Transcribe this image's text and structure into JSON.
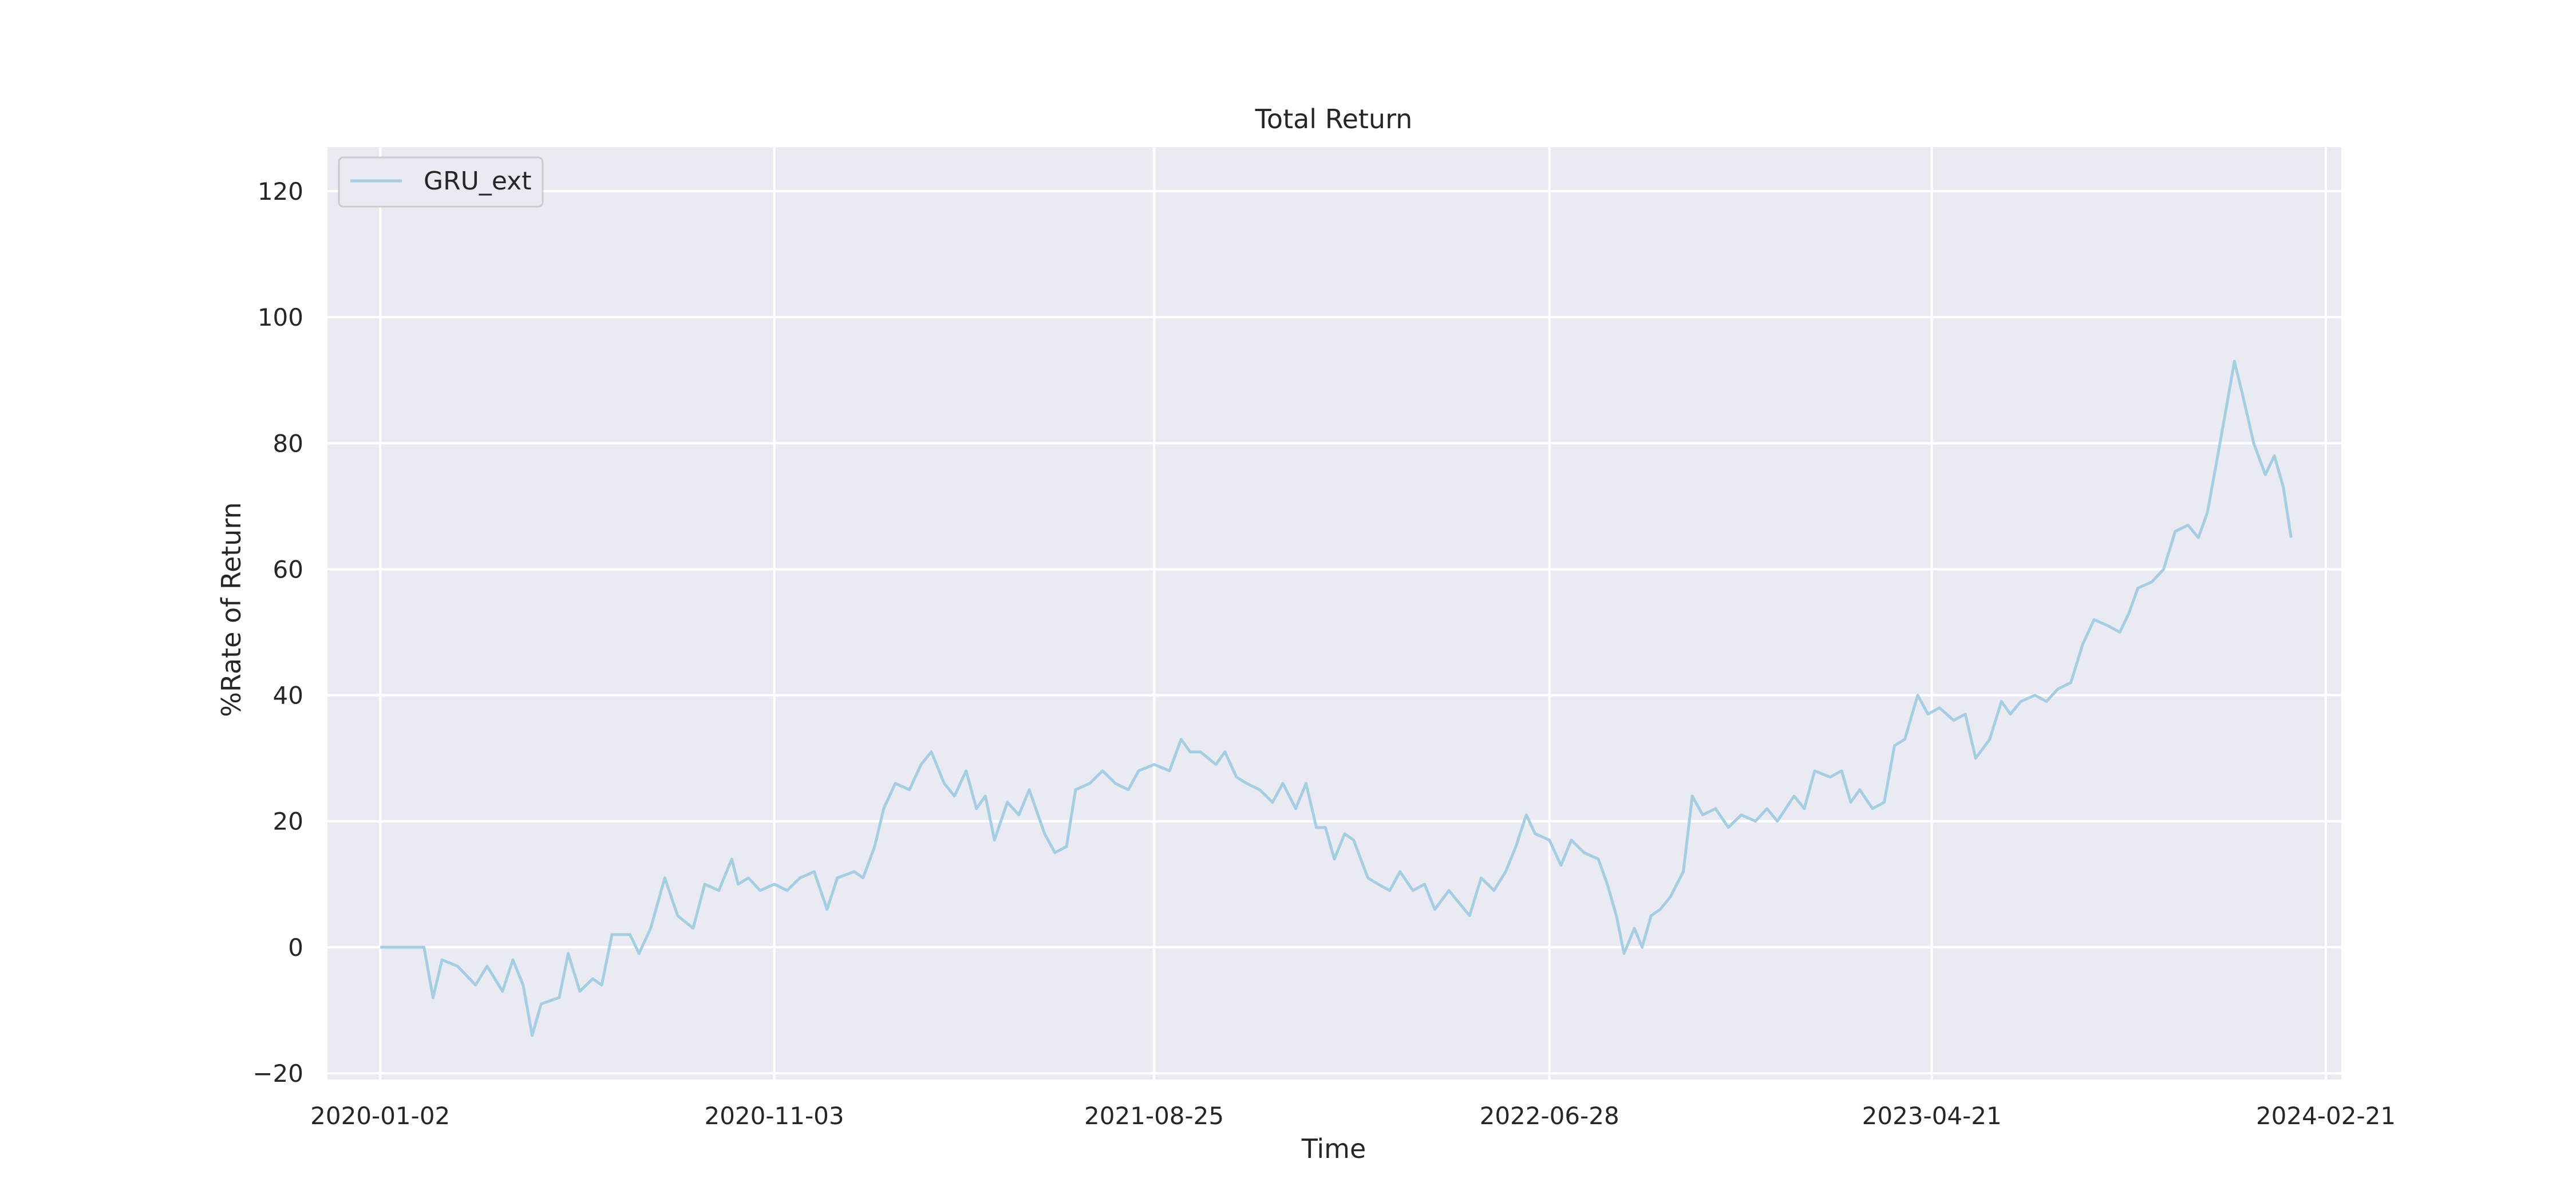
{
  "colors": {
    "plot_background": "#eaeaf2",
    "grid": "#ffffff",
    "series_line": "#a6cee3",
    "text": "#262626"
  },
  "chart_data": {
    "type": "line",
    "title": "Total Return",
    "xlabel": "Time",
    "ylabel": "%Rate of Return",
    "x_tick_labels": [
      "2020-01-02",
      "2020-11-03",
      "2021-08-25",
      "2022-06-28",
      "2023-04-21",
      "2024-02-21"
    ],
    "y_ticks": [
      -20,
      0,
      20,
      40,
      60,
      80,
      100,
      120
    ],
    "xlim": [
      "2019-11-22",
      "2024-03-04"
    ],
    "ylim": [
      -21,
      127
    ],
    "grid": true,
    "legend_position": "top-left",
    "series": [
      {
        "name": "GRU_ext",
        "points": [
          [
            "2020-01-02",
            0
          ],
          [
            "2020-02-05",
            0
          ],
          [
            "2020-02-12",
            -8
          ],
          [
            "2020-02-19",
            -2
          ],
          [
            "2020-03-02",
            -3
          ],
          [
            "2020-03-16",
            -6
          ],
          [
            "2020-03-25",
            -3
          ],
          [
            "2020-04-06",
            -7
          ],
          [
            "2020-04-14",
            -2
          ],
          [
            "2020-04-22",
            -6
          ],
          [
            "2020-04-29",
            -14
          ],
          [
            "2020-05-06",
            -9
          ],
          [
            "2020-05-20",
            -8
          ],
          [
            "2020-05-27",
            -1
          ],
          [
            "2020-06-05",
            -7
          ],
          [
            "2020-06-15",
            -5
          ],
          [
            "2020-06-22",
            -6
          ],
          [
            "2020-06-30",
            2
          ],
          [
            "2020-07-14",
            2
          ],
          [
            "2020-07-21",
            -1
          ],
          [
            "2020-07-30",
            3
          ],
          [
            "2020-08-10",
            11
          ],
          [
            "2020-08-20",
            5
          ],
          [
            "2020-09-01",
            3
          ],
          [
            "2020-09-10",
            10
          ],
          [
            "2020-09-21",
            9
          ],
          [
            "2020-10-01",
            14
          ],
          [
            "2020-10-06",
            10
          ],
          [
            "2020-10-14",
            11
          ],
          [
            "2020-10-23",
            9
          ],
          [
            "2020-11-03",
            10
          ],
          [
            "2020-11-13",
            9
          ],
          [
            "2020-11-23",
            11
          ],
          [
            "2020-12-04",
            12
          ],
          [
            "2020-12-14",
            6
          ],
          [
            "2020-12-22",
            11
          ],
          [
            "2021-01-04",
            12
          ],
          [
            "2021-01-11",
            11
          ],
          [
            "2021-01-20",
            16
          ],
          [
            "2021-01-27",
            22
          ],
          [
            "2021-02-05",
            26
          ],
          [
            "2021-02-16",
            25
          ],
          [
            "2021-02-25",
            29
          ],
          [
            "2021-03-05",
            31
          ],
          [
            "2021-03-15",
            26
          ],
          [
            "2021-03-23",
            24
          ],
          [
            "2021-04-01",
            28
          ],
          [
            "2021-04-09",
            22
          ],
          [
            "2021-04-16",
            24
          ],
          [
            "2021-04-23",
            17
          ],
          [
            "2021-05-03",
            23
          ],
          [
            "2021-05-12",
            21
          ],
          [
            "2021-05-20",
            25
          ],
          [
            "2021-06-01",
            18
          ],
          [
            "2021-06-09",
            15
          ],
          [
            "2021-06-18",
            16
          ],
          [
            "2021-06-25",
            25
          ],
          [
            "2021-07-06",
            26
          ],
          [
            "2021-07-16",
            28
          ],
          [
            "2021-07-26",
            26
          ],
          [
            "2021-08-05",
            25
          ],
          [
            "2021-08-13",
            28
          ],
          [
            "2021-08-25",
            29
          ],
          [
            "2021-09-06",
            28
          ],
          [
            "2021-09-15",
            33
          ],
          [
            "2021-09-22",
            31
          ],
          [
            "2021-09-30",
            31
          ],
          [
            "2021-10-12",
            29
          ],
          [
            "2021-10-19",
            31
          ],
          [
            "2021-10-28",
            27
          ],
          [
            "2021-11-05",
            26
          ],
          [
            "2021-11-15",
            25
          ],
          [
            "2021-11-25",
            23
          ],
          [
            "2021-12-03",
            26
          ],
          [
            "2021-12-13",
            22
          ],
          [
            "2021-12-21",
            26
          ],
          [
            "2021-12-29",
            19
          ],
          [
            "2022-01-05",
            19
          ],
          [
            "2022-01-12",
            14
          ],
          [
            "2022-01-20",
            18
          ],
          [
            "2022-01-27",
            17
          ],
          [
            "2022-02-07",
            11
          ],
          [
            "2022-02-15",
            10
          ],
          [
            "2022-02-24",
            9
          ],
          [
            "2022-03-04",
            12
          ],
          [
            "2022-03-14",
            9
          ],
          [
            "2022-03-23",
            10
          ],
          [
            "2022-03-31",
            6
          ],
          [
            "2022-04-11",
            9
          ],
          [
            "2022-04-19",
            7
          ],
          [
            "2022-04-27",
            5
          ],
          [
            "2022-05-06",
            11
          ],
          [
            "2022-05-16",
            9
          ],
          [
            "2022-05-25",
            12
          ],
          [
            "2022-06-02",
            16
          ],
          [
            "2022-06-10",
            21
          ],
          [
            "2022-06-17",
            18
          ],
          [
            "2022-06-28",
            17
          ],
          [
            "2022-07-07",
            13
          ],
          [
            "2022-07-15",
            17
          ],
          [
            "2022-07-25",
            15
          ],
          [
            "2022-08-05",
            14
          ],
          [
            "2022-08-12",
            10
          ],
          [
            "2022-08-19",
            5
          ],
          [
            "2022-08-25",
            -1
          ],
          [
            "2022-09-02",
            3
          ],
          [
            "2022-09-08",
            0
          ],
          [
            "2022-09-15",
            5
          ],
          [
            "2022-09-22",
            6
          ],
          [
            "2022-09-30",
            8
          ],
          [
            "2022-10-10",
            12
          ],
          [
            "2022-10-17",
            24
          ],
          [
            "2022-10-25",
            21
          ],
          [
            "2022-11-04",
            22
          ],
          [
            "2022-11-14",
            19
          ],
          [
            "2022-11-24",
            21
          ],
          [
            "2022-12-05",
            20
          ],
          [
            "2022-12-14",
            22
          ],
          [
            "2022-12-22",
            20
          ],
          [
            "2023-01-04",
            24
          ],
          [
            "2023-01-12",
            22
          ],
          [
            "2023-01-20",
            28
          ],
          [
            "2023-02-01",
            27
          ],
          [
            "2023-02-10",
            28
          ],
          [
            "2023-02-17",
            23
          ],
          [
            "2023-02-24",
            25
          ],
          [
            "2023-03-06",
            22
          ],
          [
            "2023-03-15",
            23
          ],
          [
            "2023-03-23",
            32
          ],
          [
            "2023-03-31",
            33
          ],
          [
            "2023-04-10",
            40
          ],
          [
            "2023-04-18",
            37
          ],
          [
            "2023-04-27",
            38
          ],
          [
            "2023-05-08",
            36
          ],
          [
            "2023-05-17",
            37
          ],
          [
            "2023-05-25",
            30
          ],
          [
            "2023-06-05",
            33
          ],
          [
            "2023-06-14",
            39
          ],
          [
            "2023-06-21",
            37
          ],
          [
            "2023-06-29",
            39
          ],
          [
            "2023-07-10",
            40
          ],
          [
            "2023-07-19",
            39
          ],
          [
            "2023-07-28",
            41
          ],
          [
            "2023-08-07",
            42
          ],
          [
            "2023-08-16",
            48
          ],
          [
            "2023-08-25",
            52
          ],
          [
            "2023-09-05",
            51
          ],
          [
            "2023-09-14",
            50
          ],
          [
            "2023-09-21",
            53
          ],
          [
            "2023-09-28",
            57
          ],
          [
            "2023-10-09",
            58
          ],
          [
            "2023-10-18",
            60
          ],
          [
            "2023-10-27",
            66
          ],
          [
            "2023-11-06",
            67
          ],
          [
            "2023-11-14",
            65
          ],
          [
            "2023-11-21",
            69
          ],
          [
            "2023-11-29",
            78
          ],
          [
            "2023-12-06",
            86
          ],
          [
            "2023-12-12",
            93
          ],
          [
            "2023-12-18",
            88
          ],
          [
            "2023-12-27",
            80
          ],
          [
            "2024-01-05",
            75
          ],
          [
            "2024-01-12",
            78
          ],
          [
            "2024-01-19",
            73
          ],
          [
            "2024-01-25",
            65
          ]
        ]
      }
    ]
  }
}
